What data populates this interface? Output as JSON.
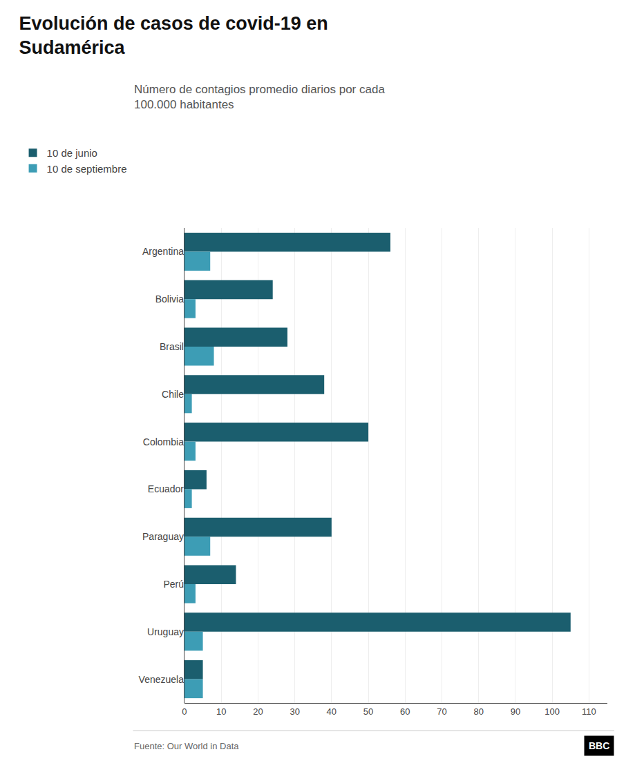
{
  "chart_data": {
    "type": "bar",
    "orientation": "horizontal",
    "title": "Evolución de casos de covid-19 en\nSudamérica",
    "subtitle": "Número de contagios promedio diarios por cada\n100.000 habitantes",
    "categories": [
      "Argentina",
      "Bolivia",
      "Brasil",
      "Chile",
      "Colombia",
      "Ecuador",
      "Paraguay",
      "Perú",
      "Uruguay",
      "Venezuela"
    ],
    "series": [
      {
        "name": "10 de junio",
        "color": "#1b5e6e",
        "values": [
          56,
          24,
          28,
          38,
          50,
          6,
          40,
          14,
          105,
          5
        ]
      },
      {
        "name": "10 de septiembre",
        "color": "#3d9db5",
        "values": [
          7,
          3,
          8,
          2,
          3,
          2,
          7,
          3,
          5,
          5
        ]
      }
    ],
    "xlim": [
      0,
      115
    ],
    "xticks": [
      0,
      10,
      20,
      30,
      40,
      50,
      60,
      70,
      80,
      90,
      100,
      110
    ],
    "grid": true,
    "legend": "upper left",
    "annotations": [
      "Fuente: Our World in Data",
      "BBC"
    ]
  }
}
